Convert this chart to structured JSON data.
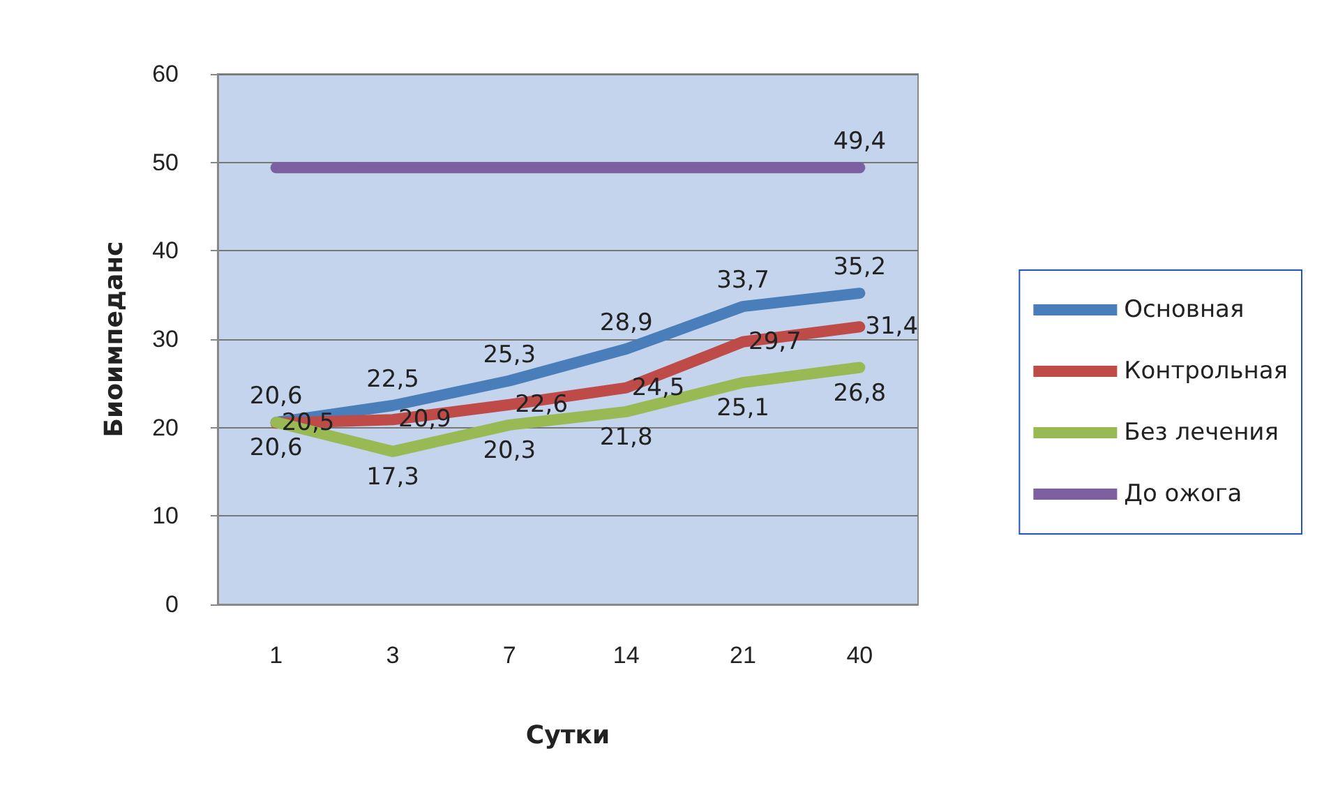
{
  "chart_data": {
    "type": "line",
    "xlabel": "Сутки",
    "ylabel": "Биоимпеданс",
    "categories": [
      "1",
      "3",
      "7",
      "14",
      "21",
      "40"
    ],
    "series": [
      {
        "name": "Основная",
        "color": "#4a7ebb",
        "values": [
          20.6,
          22.5,
          25.3,
          28.9,
          33.7,
          35.2
        ],
        "value_labels": [
          "20,6",
          "22,5",
          "25,3",
          "28,9",
          "33,7",
          "35,2"
        ]
      },
      {
        "name": "Контрольная",
        "color": "#be4b48",
        "values": [
          20.5,
          20.9,
          22.6,
          24.5,
          29.7,
          31.4
        ],
        "value_labels": [
          "20,5",
          "20,9",
          "22,6",
          "24,5",
          "29,7",
          "31,4"
        ]
      },
      {
        "name": "Без лечения",
        "color": "#98b954",
        "values": [
          20.6,
          17.3,
          20.3,
          21.8,
          25.1,
          26.8
        ],
        "value_labels": [
          "20,6",
          "17,3",
          "20,3",
          "21,8",
          "25,1",
          "26,8"
        ]
      },
      {
        "name": "До ожога",
        "color": "#7d60a0",
        "values": [
          49.4,
          49.4,
          49.4,
          49.4,
          49.4,
          49.4
        ],
        "value_labels": [
          null,
          null,
          null,
          null,
          null,
          "49,4"
        ]
      }
    ],
    "ylim": [
      0,
      60
    ],
    "yticks": [
      0,
      10,
      20,
      30,
      40,
      50,
      60
    ],
    "grid": "y",
    "legend": "right",
    "marker": "none",
    "line_style": "solid"
  }
}
